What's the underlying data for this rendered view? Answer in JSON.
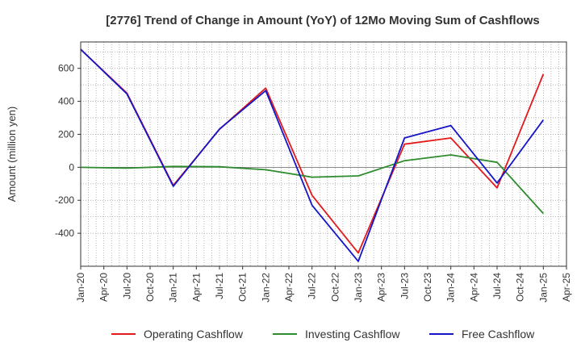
{
  "chart_data": {
    "type": "line",
    "title": "[2776]  Trend of Change in Amount (YoY) of 12Mo Moving Sum of Cashflows",
    "xlabel": "",
    "ylabel": "Amount (million yen)",
    "ylim": [
      -600,
      760
    ],
    "yticks": [
      -400,
      -200,
      0,
      200,
      400,
      600
    ],
    "grid": true,
    "legend_position": "bottom",
    "categories": [
      "Jan-20",
      "Apr-20",
      "Jul-20",
      "Oct-20",
      "Jan-21",
      "Apr-21",
      "Jul-21",
      "Oct-21",
      "Jan-22",
      "Apr-22",
      "Jul-22",
      "Oct-22",
      "Jan-23",
      "Apr-23",
      "Jul-23",
      "Oct-23",
      "Jan-24",
      "Apr-24",
      "Jul-24",
      "Oct-24",
      "Jan-25",
      "Apr-25"
    ],
    "series": [
      {
        "name": "Operating Cashflow",
        "color": "#e31a1c",
        "x": [
          "Jan-20",
          "Jul-20",
          "Jan-21",
          "Jul-21",
          "Jan-22",
          "Jul-22",
          "Jan-23",
          "Jul-23",
          "Jan-24",
          "Jul-24",
          "Jan-25"
        ],
        "values": [
          715,
          450,
          -110,
          230,
          480,
          -170,
          -520,
          140,
          178,
          -125,
          565
        ]
      },
      {
        "name": "Investing Cashflow",
        "color": "#2e8b2e",
        "x": [
          "Jan-20",
          "Jul-20",
          "Jan-21",
          "Jul-21",
          "Jan-22",
          "Jul-22",
          "Jan-23",
          "Jul-23",
          "Jan-24",
          "Jul-24",
          "Jan-25"
        ],
        "values": [
          0,
          -5,
          5,
          3,
          -15,
          -60,
          -52,
          40,
          75,
          30,
          -280
        ]
      },
      {
        "name": "Free Cashflow",
        "color": "#1515c8",
        "x": [
          "Jan-20",
          "Jul-20",
          "Jan-21",
          "Jul-21",
          "Jan-22",
          "Jul-22",
          "Jan-23",
          "Jul-23",
          "Jan-24",
          "Jul-24",
          "Jan-25"
        ],
        "values": [
          715,
          445,
          -115,
          232,
          465,
          -230,
          -570,
          178,
          253,
          -95,
          287
        ]
      }
    ]
  }
}
